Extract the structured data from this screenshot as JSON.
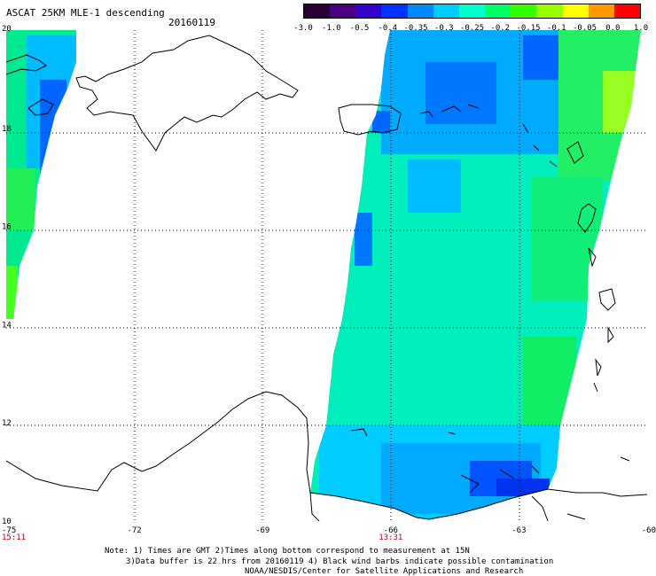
{
  "header": {
    "title": "ASCAT 25KM MLE-1 descending",
    "date": "20160119"
  },
  "colorbar": {
    "labels": [
      "-3.0",
      "-1.0",
      "-0.5",
      "-0.4",
      "-0.35",
      "-0.3",
      "-0.25",
      "-0.2",
      "-0.15",
      "-0.1",
      "-0.05",
      "0.0",
      "1.0"
    ],
    "colors": [
      "#2a0033",
      "#4a0080",
      "#3300cc",
      "#0033ff",
      "#0088ff",
      "#00ccff",
      "#00ffcc",
      "#00ff66",
      "#33ff00",
      "#99ff00",
      "#ffff00",
      "#ff9900",
      "#ff0000"
    ]
  },
  "map": {
    "lon_range": [
      -75,
      -60
    ],
    "lat_range": [
      10,
      20
    ],
    "lon_ticks": [
      "-75",
      "-72",
      "-69",
      "-66",
      "-63",
      "-60"
    ],
    "lat_ticks": [
      "20",
      "18",
      "16",
      "14",
      "12",
      "10"
    ],
    "grid": true,
    "time_labels": [
      {
        "text": "15:11",
        "lon": -75
      },
      {
        "text": "13:31",
        "lon": -66
      }
    ]
  },
  "notes": {
    "line1": "Note: 1) Times are GMT 2)Times along bottom correspond to measurement at 15N",
    "line2": "3)Data buffer is 22 hrs from 20160119 4) Black wind barbs indicate possible contamination",
    "line3": "NOAA/NESDIS/Center for Satellite Applications and Research"
  }
}
